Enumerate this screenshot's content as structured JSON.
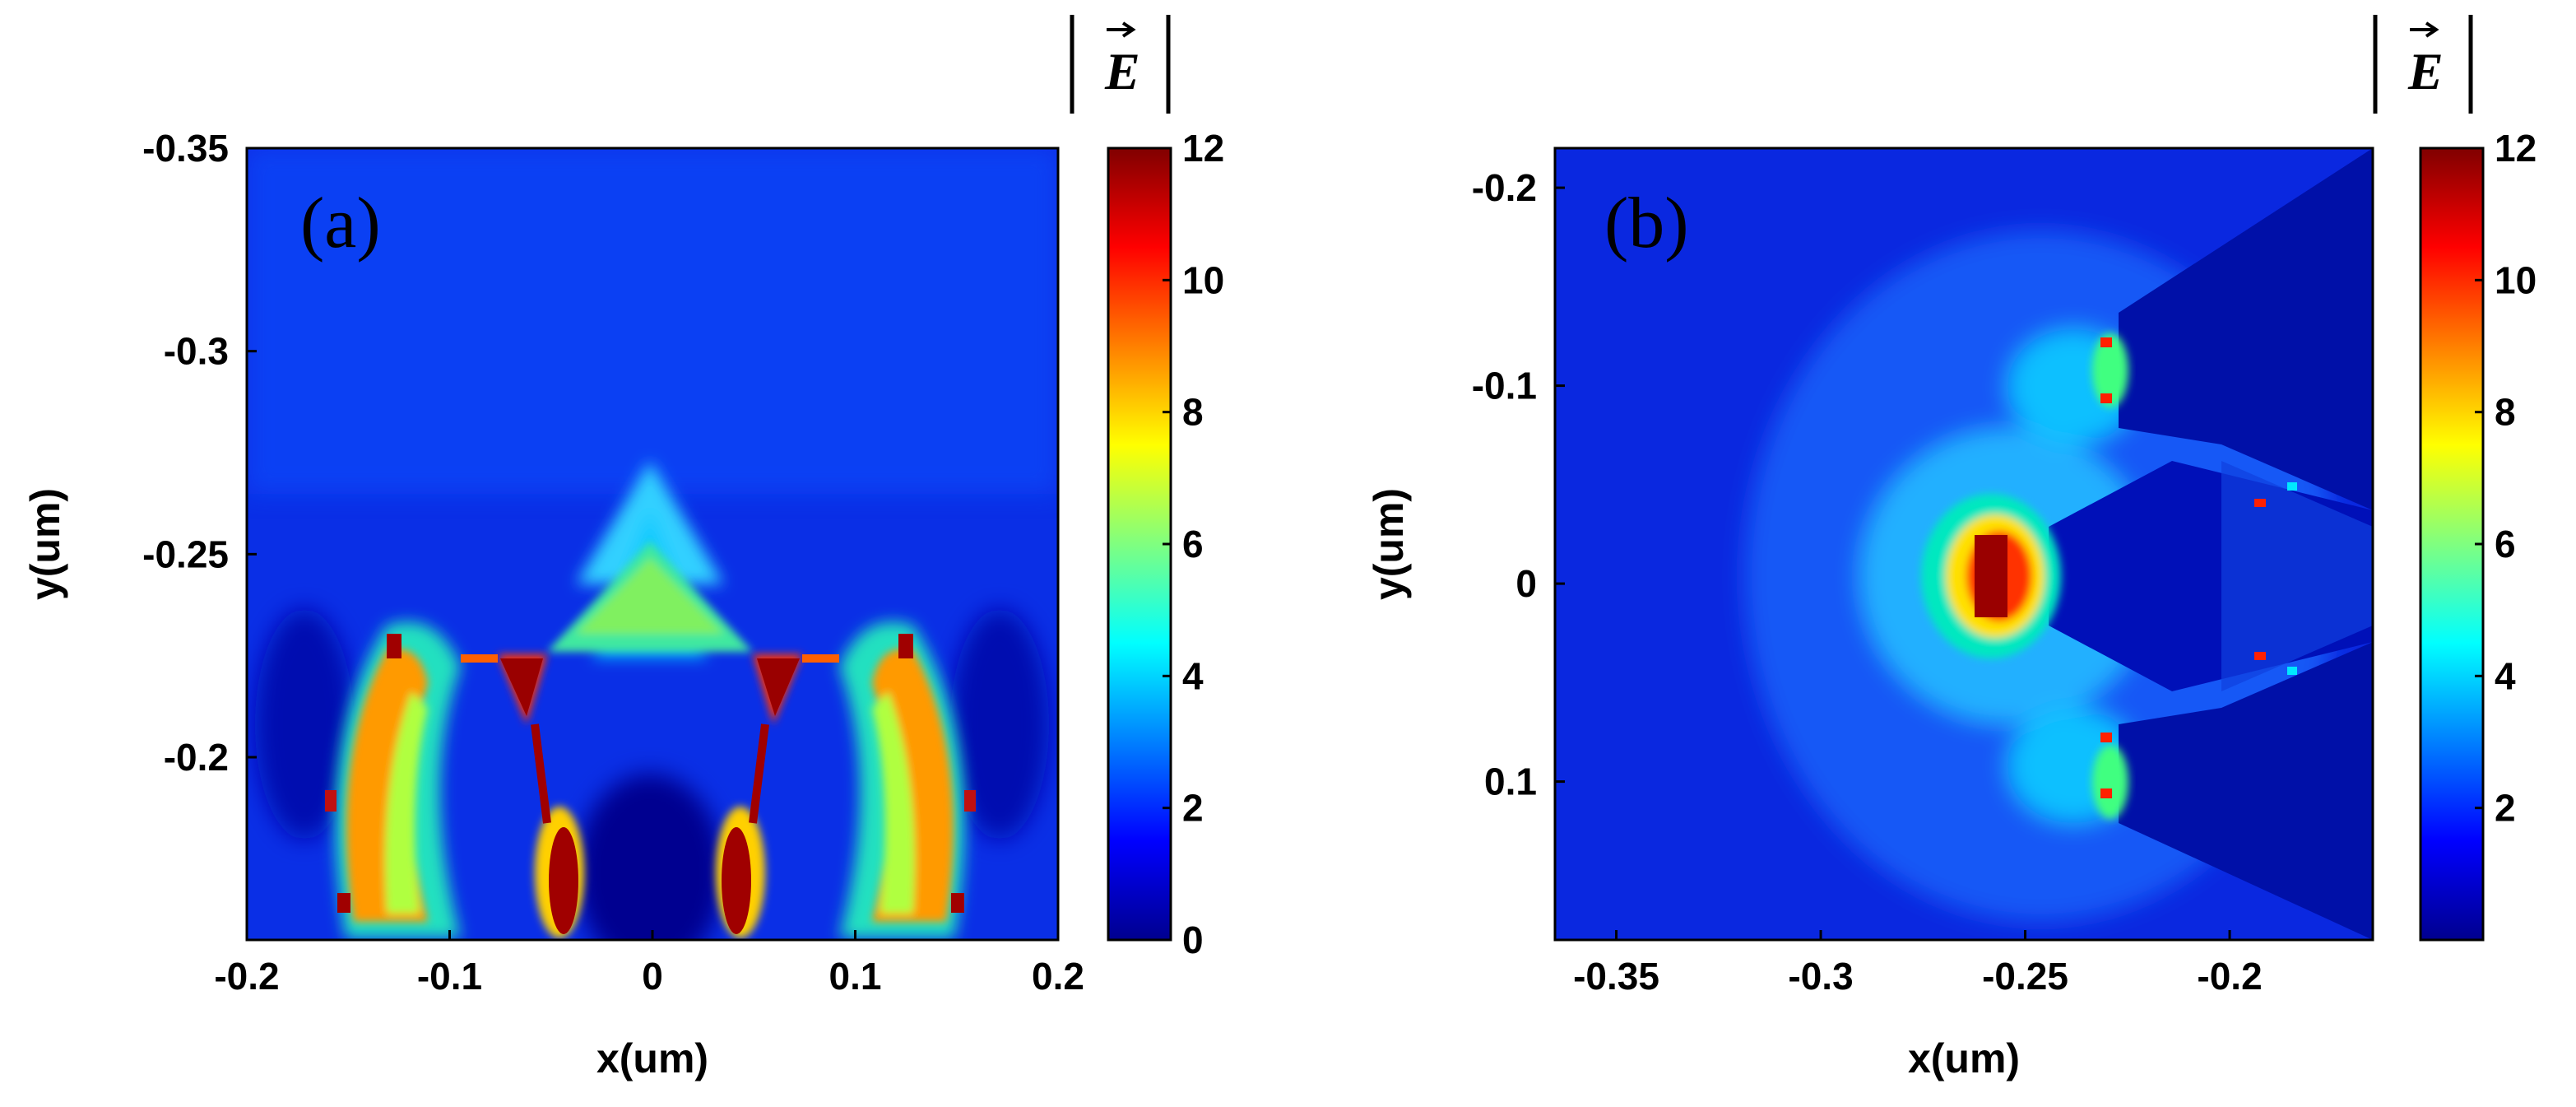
{
  "chart_data": [
    {
      "type": "heatmap",
      "panel_label": "(a)",
      "xlabel": "x(um)",
      "ylabel": "y(um)",
      "xlim": [
        -0.2,
        0.2
      ],
      "ylim": [
        -0.35,
        -0.155
      ],
      "y_reversed": true,
      "x_ticks": [
        -0.2,
        -0.1,
        0,
        0.1,
        0.2
      ],
      "x_tick_labels": [
        "-0.2",
        "-0.1",
        "0",
        "0.1",
        "0.2"
      ],
      "y_ticks": [
        -0.35,
        -0.3,
        -0.25,
        -0.2
      ],
      "y_tick_labels": [
        "-0.35",
        "-0.3",
        "-0.25",
        "-0.2"
      ],
      "colorbar": {
        "title": "|E|",
        "range": [
          0,
          12
        ],
        "ticks": [
          0,
          2,
          4,
          6,
          8,
          10,
          12
        ],
        "tick_labels": [
          "0",
          "2",
          "4",
          "6",
          "8",
          "10",
          "12"
        ],
        "colormap": "jet"
      },
      "field_description": "Field enhancement around a bowtie-like structure; strong hot spots (|E|≈12) near x≈±0.05 and x≈±0.13–0.15 between y≈-0.22 and -0.155; central tip near (0,-0.25) at |E|≈6"
    },
    {
      "type": "heatmap",
      "panel_label": "(b)",
      "xlabel": "x(um)",
      "ylabel": "y(um)",
      "xlim": [
        -0.365,
        -0.165
      ],
      "ylim": [
        -0.22,
        0.18
      ],
      "y_reversed": true,
      "x_ticks": [
        -0.35,
        -0.3,
        -0.25,
        -0.2
      ],
      "x_tick_labels": [
        "-0.35",
        "-0.3",
        "-0.25",
        "-0.2"
      ],
      "y_ticks": [
        -0.2,
        -0.1,
        0,
        0.1
      ],
      "y_tick_labels": [
        "-0.2",
        "-0.1",
        "0",
        "0.1"
      ],
      "colorbar": {
        "title": "|E|",
        "range": [
          0,
          12
        ],
        "ticks": [
          2,
          4,
          6,
          8,
          10,
          12
        ],
        "tick_labels": [
          "2",
          "4",
          "6",
          "8",
          "10",
          "12"
        ],
        "colormap": "jet"
      },
      "field_description": "Hot spot (|E|≈12) at tip near (-0.255, 0); weaker spots (|E|≈6–8) at (-0.225, ±0.1); low field region to the right of x≈-0.23"
    }
  ]
}
